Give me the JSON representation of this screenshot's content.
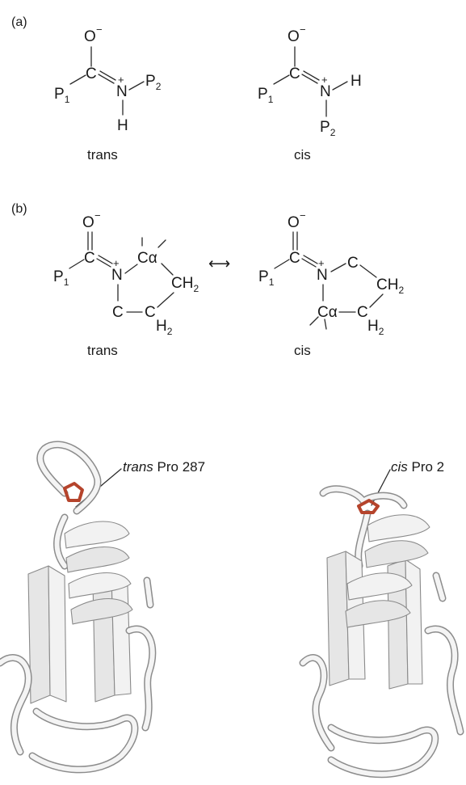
{
  "panel_a": {
    "tag": "(a)",
    "trans": {
      "o": "O",
      "o_charge": "−",
      "c": "C",
      "n": "N",
      "n_charge": "+",
      "p1": "P",
      "p1_sub": "1",
      "p2": "P",
      "p2_sub": "2",
      "h": "H",
      "label": "trans"
    },
    "cis": {
      "o": "O",
      "o_charge": "−",
      "c": "C",
      "n": "N",
      "n_charge": "+",
      "p1": "P",
      "p1_sub": "1",
      "h": "H",
      "p2": "P",
      "p2_sub": "2",
      "label": "cis"
    }
  },
  "panel_b": {
    "tag": "(b)",
    "trans": {
      "o": "O",
      "o_charge": "−",
      "c": "C",
      "n": "N",
      "n_charge": "+",
      "p1": "P",
      "p1_sub": "1",
      "ca": "Cα",
      "ch2": "CH",
      "ch2_sub": "2",
      "c_ring": "C",
      "c_h2": "C",
      "h2": "H",
      "h2_sub": "2",
      "label": "trans"
    },
    "arrow": "⟷",
    "cis": {
      "o": "O",
      "o_charge": "−",
      "c": "C",
      "n": "N",
      "n_charge": "+",
      "p1": "P",
      "p1_sub": "1",
      "c_ring": "C",
      "ch2": "CH",
      "ch2_sub": "2",
      "ca": "Cα",
      "c_h2": "C",
      "h2": "H",
      "h2_sub": "2",
      "label": "cis"
    }
  },
  "structures": {
    "left_label_italic": "trans",
    "left_label_rest": " Pro 287",
    "right_label_italic": "cis",
    "right_label_rest": " Pro 2",
    "ribbon_color": "#f2f2f2",
    "proline_color": "#b5442c"
  }
}
